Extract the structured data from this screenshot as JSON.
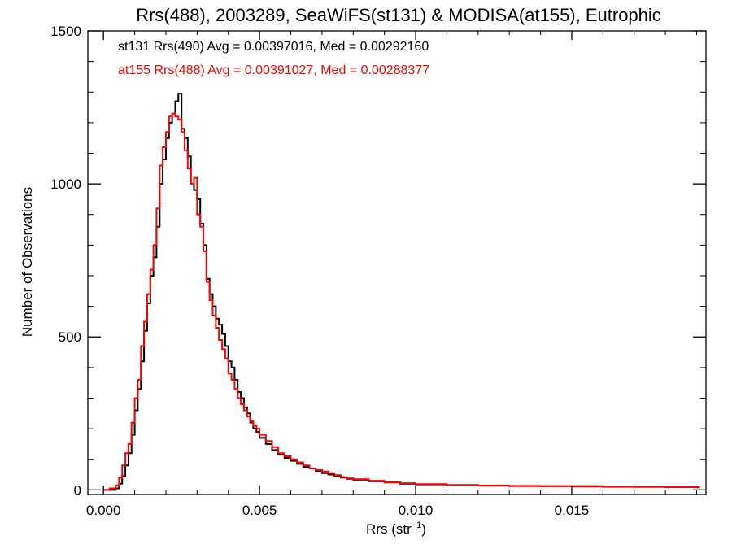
{
  "chart_data": {
    "type": "line",
    "step": true,
    "title": "Rrs(488), 2003289, SeaWiFS(st131) & MODISA(at155), Eutrophic",
    "xlabel_base": "Rrs (str",
    "xlabel_sup": "−1",
    "xlabel_close": ")",
    "ylabel": "Number of Observations",
    "xlim": [
      -0.0005,
      0.0193
    ],
    "ylim": [
      -15,
      1500
    ],
    "xticks": [
      0.0,
      0.005,
      0.01,
      0.015
    ],
    "xtick_labels": [
      "0.000",
      "0.005",
      "0.010",
      "0.015"
    ],
    "yticks": [
      0,
      500,
      1000,
      1500
    ],
    "ytick_labels": [
      "0",
      "500",
      "1000",
      "1500"
    ],
    "grid": false,
    "bin_width": 0.0001,
    "series": [
      {
        "name": "st131 Rrs(490)",
        "legend_text": "st131 Rrs(490) Avg = 0.00397016, Med = 0.00292160",
        "color": "#000000",
        "x": [
          0.0,
          0.0002,
          0.0004,
          0.0005,
          0.0006,
          0.0007,
          0.0008,
          0.0009,
          0.001,
          0.0011,
          0.0012,
          0.0013,
          0.0014,
          0.0015,
          0.0016,
          0.0017,
          0.0018,
          0.0019,
          0.002,
          0.0021,
          0.0022,
          0.0023,
          0.0024,
          0.0025,
          0.0026,
          0.0027,
          0.0028,
          0.0029,
          0.003,
          0.0031,
          0.0032,
          0.0033,
          0.0034,
          0.0035,
          0.0036,
          0.0037,
          0.0038,
          0.0039,
          0.004,
          0.0041,
          0.0042,
          0.0043,
          0.0044,
          0.0045,
          0.0046,
          0.0047,
          0.0048,
          0.0049,
          0.005,
          0.0052,
          0.0054,
          0.0056,
          0.0058,
          0.006,
          0.0062,
          0.0064,
          0.0066,
          0.0068,
          0.007,
          0.0072,
          0.0074,
          0.0076,
          0.0078,
          0.008,
          0.0085,
          0.009,
          0.0095,
          0.01,
          0.011,
          0.012,
          0.013,
          0.014,
          0.015,
          0.016,
          0.017,
          0.018,
          0.019
        ],
        "values": [
          0,
          0,
          5,
          20,
          45,
          80,
          120,
          180,
          260,
          330,
          420,
          520,
          610,
          700,
          760,
          860,
          1000,
          1080,
          1150,
          1200,
          1230,
          1270,
          1295,
          1180,
          1150,
          1090,
          1000,
          980,
          950,
          870,
          800,
          690,
          640,
          600,
          560,
          540,
          510,
          470,
          420,
          400,
          360,
          320,
          300,
          270,
          250,
          220,
          200,
          190,
          170,
          150,
          130,
          115,
          105,
          95,
          85,
          75,
          70,
          62,
          55,
          50,
          45,
          40,
          36,
          33,
          28,
          24,
          20,
          18,
          15,
          14,
          13,
          12,
          12,
          11,
          10,
          10,
          9
        ]
      },
      {
        "name": "at155 Rrs(488)",
        "legend_text": "at155 Rrs(488) Avg = 0.00391027, Med = 0.00288377",
        "color": "#ff0000",
        "x": [
          0.0,
          0.0002,
          0.0004,
          0.0005,
          0.0006,
          0.0007,
          0.0008,
          0.0009,
          0.001,
          0.0011,
          0.0012,
          0.0013,
          0.0014,
          0.0015,
          0.0016,
          0.0017,
          0.0018,
          0.0019,
          0.002,
          0.0021,
          0.0022,
          0.0023,
          0.0024,
          0.0025,
          0.0026,
          0.0027,
          0.0028,
          0.0029,
          0.003,
          0.0031,
          0.0032,
          0.0033,
          0.0034,
          0.0035,
          0.0036,
          0.0037,
          0.0038,
          0.0039,
          0.004,
          0.0041,
          0.0042,
          0.0043,
          0.0044,
          0.0045,
          0.0046,
          0.0047,
          0.0048,
          0.0049,
          0.005,
          0.0052,
          0.0054,
          0.0056,
          0.0058,
          0.006,
          0.0062,
          0.0064,
          0.0066,
          0.0068,
          0.007,
          0.0072,
          0.0074,
          0.0076,
          0.0078,
          0.008,
          0.0085,
          0.009,
          0.0095,
          0.01,
          0.011,
          0.012,
          0.013,
          0.014,
          0.015,
          0.016,
          0.017,
          0.018,
          0.019
        ],
        "values": [
          0,
          5,
          15,
          40,
          80,
          120,
          150,
          220,
          300,
          360,
          470,
          550,
          640,
          720,
          800,
          920,
          1060,
          1120,
          1170,
          1220,
          1230,
          1220,
          1210,
          1170,
          1110,
          1050,
          1000,
          1020,
          900,
          860,
          780,
          680,
          620,
          570,
          530,
          490,
          460,
          430,
          380,
          360,
          330,
          300,
          280,
          260,
          240,
          225,
          210,
          200,
          180,
          160,
          140,
          120,
          110,
          100,
          90,
          80,
          70,
          65,
          60,
          55,
          48,
          42,
          38,
          35,
          30,
          25,
          22,
          19,
          16,
          14,
          12,
          12,
          11,
          10,
          10,
          9,
          8
        ]
      }
    ]
  }
}
